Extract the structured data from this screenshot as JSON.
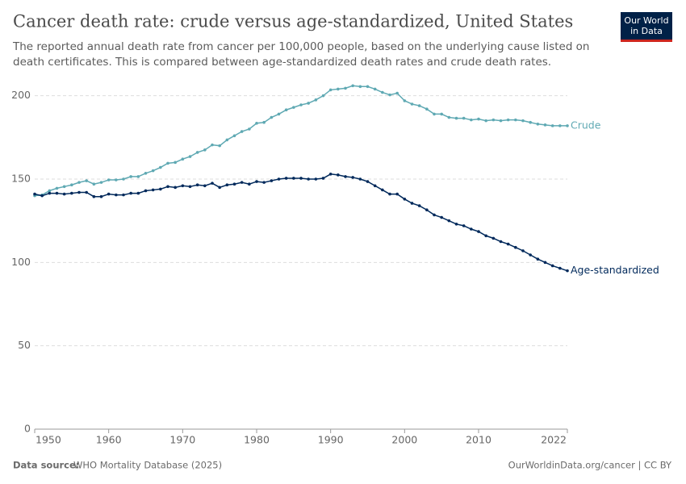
{
  "logo": [
    "Our World",
    "in Data"
  ],
  "footer": {
    "source_label": "Data source:",
    "source": "WHO Mortality Database (2025)",
    "credit": "OurWorldinData.org/cancer | CC BY"
  },
  "chart_data": {
    "type": "line",
    "title": "Cancer death rate: crude versus age-standardized, United States",
    "subtitle": [
      "The reported annual death rate from cancer per 100,000 people, based on the underlying cause listed on",
      "death certificates. This is compared between age-standardized death rates and crude death rates."
    ],
    "x": [
      1950,
      1951,
      1952,
      1953,
      1954,
      1955,
      1956,
      1957,
      1958,
      1959,
      1960,
      1961,
      1962,
      1963,
      1964,
      1965,
      1966,
      1967,
      1968,
      1969,
      1970,
      1971,
      1972,
      1973,
      1974,
      1975,
      1976,
      1977,
      1978,
      1979,
      1980,
      1981,
      1982,
      1983,
      1984,
      1985,
      1986,
      1987,
      1988,
      1989,
      1990,
      1991,
      1992,
      1993,
      1994,
      1995,
      1996,
      1997,
      1998,
      1999,
      2000,
      2001,
      2002,
      2003,
      2004,
      2005,
      2006,
      2007,
      2008,
      2009,
      2010,
      2011,
      2012,
      2013,
      2014,
      2015,
      2016,
      2017,
      2018,
      2019,
      2020,
      2021,
      2022
    ],
    "series": [
      {
        "name": "Crude",
        "color": "#5fa9b3",
        "values": [
          140,
          140.5,
          143,
          144.5,
          145.5,
          146.5,
          148,
          149,
          147,
          148,
          149.5,
          149.5,
          150,
          151.5,
          151.5,
          153.5,
          155,
          157,
          159.5,
          160,
          162,
          163.5,
          166,
          167.5,
          170.5,
          170,
          173.5,
          176,
          178.5,
          180,
          183.5,
          184,
          187,
          189,
          191.5,
          193,
          194.5,
          195.5,
          197.5,
          200,
          203.5,
          204,
          204.5,
          206,
          205.5,
          205.5,
          204,
          202,
          200.5,
          201.5,
          197,
          195,
          194,
          192,
          189,
          189,
          187,
          186.5,
          186.5,
          185.5,
          186,
          185,
          185.5,
          185,
          185.5,
          185.5,
          185,
          184,
          183,
          182.5,
          182,
          182,
          182
        ]
      },
      {
        "name": "Age-standardized",
        "color": "#00295b",
        "values": [
          141,
          140,
          141.5,
          141.5,
          141,
          141.5,
          142,
          142,
          139.5,
          139.5,
          141,
          140.5,
          140.5,
          141.5,
          141.5,
          143,
          143.5,
          144,
          145.5,
          145,
          146,
          145.5,
          146.5,
          146,
          147.5,
          145,
          146.5,
          147,
          148,
          147,
          148.5,
          148,
          149,
          150,
          150.5,
          150.5,
          150.5,
          150,
          150,
          150.5,
          153,
          152.5,
          151.5,
          151,
          150,
          148.5,
          146,
          143.5,
          141,
          141,
          138,
          135.5,
          134,
          131.5,
          128.5,
          127,
          125,
          123,
          122,
          120,
          118.5,
          116,
          114.5,
          112.5,
          111,
          109,
          107,
          104.5,
          102,
          100,
          98,
          96.5,
          95
        ]
      }
    ],
    "xlim": [
      1950,
      2022
    ],
    "xticks": [
      1950,
      1960,
      1970,
      1980,
      1990,
      2000,
      2010,
      2022
    ],
    "ylim": [
      0,
      210
    ],
    "yticks": [
      0,
      50,
      100,
      150,
      200
    ],
    "grid": true
  }
}
